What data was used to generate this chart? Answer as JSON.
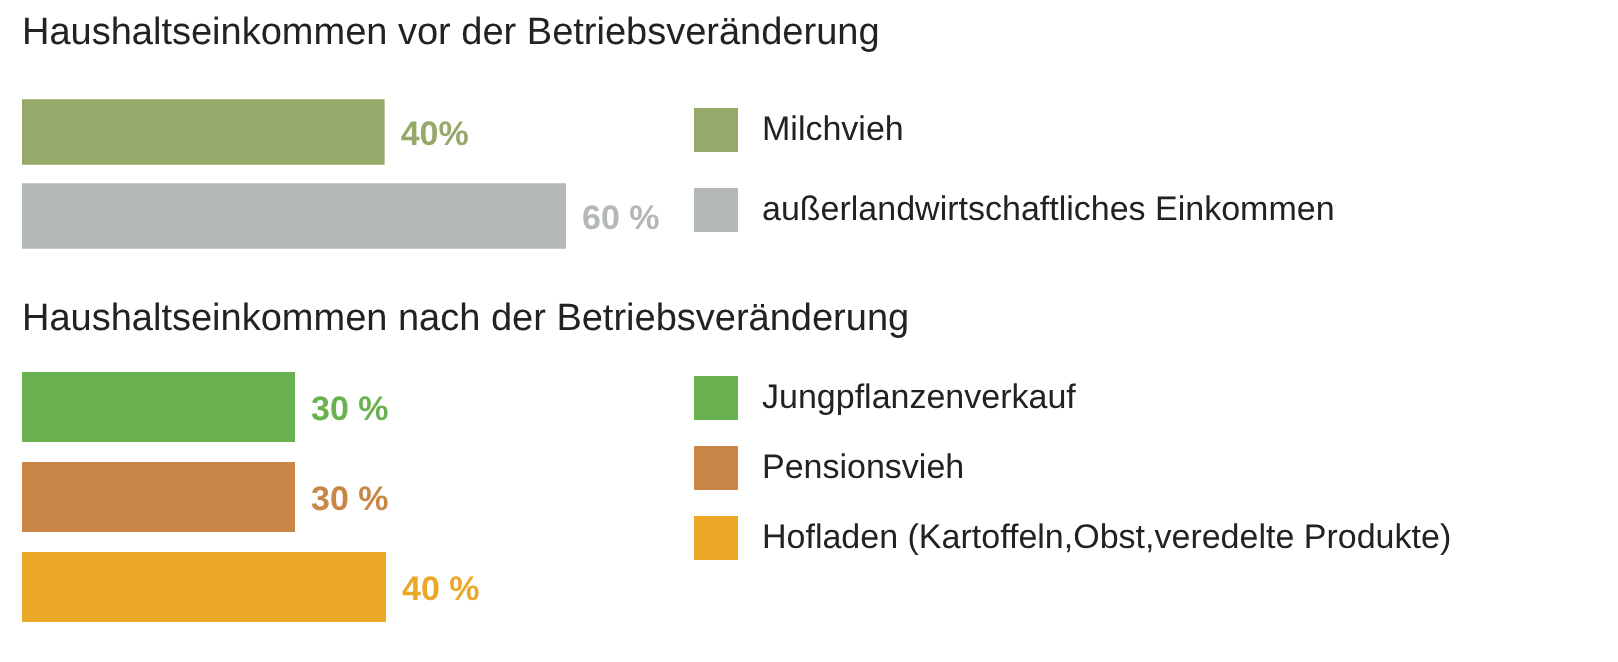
{
  "chart_data": [
    {
      "type": "bar",
      "orientation": "horizontal",
      "stacked": true,
      "title": "Haushaltseinkommen vor der Betriebsveränderung",
      "categories": [
        null,
        null
      ],
      "tick_labels": false,
      "legend": "right",
      "series": [
        {
          "name": "Milchvieh",
          "color": "#97a86b",
          "values": [
            40,
            null
          ],
          "value_labels": [
            "40%",
            null
          ]
        },
        {
          "name": "außerlandwirtschaftliches Einkommen",
          "color": "#b5b8b8",
          "values": [
            null,
            60
          ],
          "value_labels": [
            null,
            "60 %"
          ]
        }
      ]
    },
    {
      "type": "bar",
      "orientation": "horizontal",
      "stacked": true,
      "title": "Haushaltseinkommen nach der Betriebsveränderung",
      "categories": [
        null,
        null,
        null
      ],
      "tick_labels": false,
      "legend": "right",
      "series": [
        {
          "name": "Jungpflanzenverkauf",
          "color": "#6ab150",
          "values": [
            30,
            null,
            null
          ],
          "value_labels": [
            "30 %",
            null,
            null
          ]
        },
        {
          "name": "Pensionsvieh",
          "color": "#c88747",
          "values": [
            null,
            30,
            null
          ],
          "value_labels": [
            null,
            "30 %",
            null
          ]
        },
        {
          "name": "Hofladen (Kartoffeln,Obst,veredelte Produkte)",
          "color": "#eba827",
          "values": [
            null,
            null,
            40
          ],
          "value_labels": [
            null,
            null,
            "40 %"
          ]
        }
      ]
    }
  ]
}
